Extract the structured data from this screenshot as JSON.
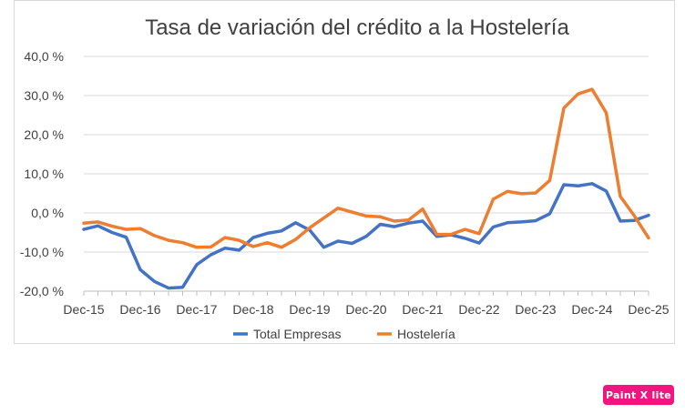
{
  "chart_data": {
    "type": "line",
    "title": "Tasa de variación del crédito a la Hostelería",
    "xlabel": "",
    "ylabel": "",
    "ylim": [
      -20,
      40
    ],
    "yticks": [
      "40,0 %",
      "30,0 %",
      "20,0 %",
      "10,0 %",
      "0,0 %",
      "-10,0 %",
      "-20,0 %"
    ],
    "ytick_values": [
      40,
      30,
      20,
      10,
      0,
      -10,
      -20
    ],
    "x_tick_labels": [
      "Dec-15",
      "Dec-16",
      "Dec-17",
      "Dec-18",
      "Dec-19",
      "Dec-20",
      "Dec-21",
      "Dec-22",
      "Dec-23",
      "Dec-24",
      "Dec-25"
    ],
    "x_start": "Dec-15",
    "x_step": "quarter",
    "grid": true,
    "legend_position": "bottom",
    "series": [
      {
        "name": "Total Empresas",
        "color": "#4472c4",
        "values": [
          -4.2,
          -3.3,
          -5.0,
          -6.2,
          -14.5,
          -17.5,
          -19.2,
          -19.0,
          -13.2,
          -10.7,
          -9.0,
          -9.5,
          -6.3,
          -5.2,
          -4.6,
          -2.5,
          -4.4,
          -8.8,
          -7.2,
          -7.8,
          -6.0,
          -2.9,
          -3.5,
          -2.6,
          -2.1,
          -6.0,
          -5.6,
          -6.5,
          -7.7,
          -3.6,
          -2.5,
          -2.3,
          -2.0,
          -0.2,
          7.2,
          6.9,
          7.5,
          5.6,
          -2.1,
          -1.9,
          -0.6
        ]
      },
      {
        "name": "Hostelería",
        "color": "#ed7d31",
        "values": [
          -2.6,
          -2.3,
          -3.4,
          -4.2,
          -4.0,
          -5.8,
          -7.0,
          -7.6,
          -8.8,
          -8.7,
          -6.3,
          -7.0,
          -8.6,
          -7.6,
          -8.8,
          -6.8,
          -3.8,
          -1.3,
          1.2,
          0.2,
          -0.8,
          -1.0,
          -2.1,
          -1.8,
          1.0,
          -5.5,
          -5.5,
          -4.2,
          -5.3,
          3.5,
          5.5,
          4.9,
          5.1,
          8.3,
          26.8,
          30.4,
          31.6,
          25.6,
          4.2,
          -0.8,
          -6.4
        ]
      }
    ]
  },
  "watermark": {
    "label": "Paint X lite",
    "color": "#f0157f"
  }
}
